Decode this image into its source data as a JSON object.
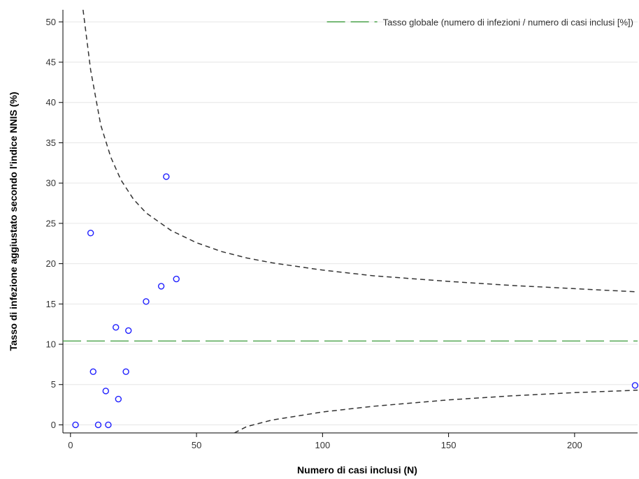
{
  "chart_data": {
    "type": "scatter",
    "xlabel": "Numero di casi inclusi (N)",
    "ylabel": "Tasso di infezione aggiustato secondo l'indice NNIS (%)",
    "xlim": [
      -3,
      225
    ],
    "ylim": [
      -1,
      51.5
    ],
    "x_ticks": [
      0,
      50,
      100,
      150,
      200
    ],
    "y_ticks": [
      0,
      5,
      10,
      15,
      20,
      25,
      30,
      35,
      40,
      45,
      50
    ],
    "grid": "horizontal",
    "legend_placement": "top-right",
    "overall_rate": 10.4,
    "legend_label": "Tasso globale (numero di infezioni / numero di casi inclusi [%])",
    "points": [
      {
        "x": 2,
        "y": 0
      },
      {
        "x": 8,
        "y": 23.8
      },
      {
        "x": 9,
        "y": 6.6
      },
      {
        "x": 11,
        "y": 0
      },
      {
        "x": 14,
        "y": 4.2
      },
      {
        "x": 15,
        "y": 0
      },
      {
        "x": 18,
        "y": 12.1
      },
      {
        "x": 19,
        "y": 3.2
      },
      {
        "x": 22,
        "y": 6.6
      },
      {
        "x": 23,
        "y": 11.7
      },
      {
        "x": 30,
        "y": 15.3
      },
      {
        "x": 36,
        "y": 17.2
      },
      {
        "x": 38,
        "y": 30.8
      },
      {
        "x": 42,
        "y": 18.1
      },
      {
        "x": 224,
        "y": 4.9
      }
    ],
    "control_limits": {
      "style": "dashed",
      "upper": [
        {
          "x": 5,
          "y": 51.5
        },
        {
          "x": 8,
          "y": 44
        },
        {
          "x": 12,
          "y": 37.2
        },
        {
          "x": 16,
          "y": 33.2
        },
        {
          "x": 20,
          "y": 30.4
        },
        {
          "x": 25,
          "y": 28
        },
        {
          "x": 30,
          "y": 26.3
        },
        {
          "x": 40,
          "y": 24.1
        },
        {
          "x": 50,
          "y": 22.6
        },
        {
          "x": 60,
          "y": 21.5
        },
        {
          "x": 70,
          "y": 20.7
        },
        {
          "x": 80,
          "y": 20.1
        },
        {
          "x": 100,
          "y": 19.2
        },
        {
          "x": 120,
          "y": 18.5
        },
        {
          "x": 150,
          "y": 17.8
        },
        {
          "x": 175,
          "y": 17.3
        },
        {
          "x": 200,
          "y": 16.9
        },
        {
          "x": 225,
          "y": 16.5
        }
      ],
      "lower": [
        {
          "x": 65,
          "y": -1
        },
        {
          "x": 70,
          "y": -0.2
        },
        {
          "x": 80,
          "y": 0.6
        },
        {
          "x": 90,
          "y": 1.1
        },
        {
          "x": 100,
          "y": 1.6
        },
        {
          "x": 120,
          "y": 2.3
        },
        {
          "x": 150,
          "y": 3.1
        },
        {
          "x": 175,
          "y": 3.6
        },
        {
          "x": 200,
          "y": 4
        },
        {
          "x": 225,
          "y": 4.3
        }
      ]
    },
    "colors": {
      "points": "#1f1fff",
      "overall_line": "#3a9a3a",
      "limits": "#333333",
      "grid": "#e6e6e6",
      "axis": "#000000"
    }
  }
}
